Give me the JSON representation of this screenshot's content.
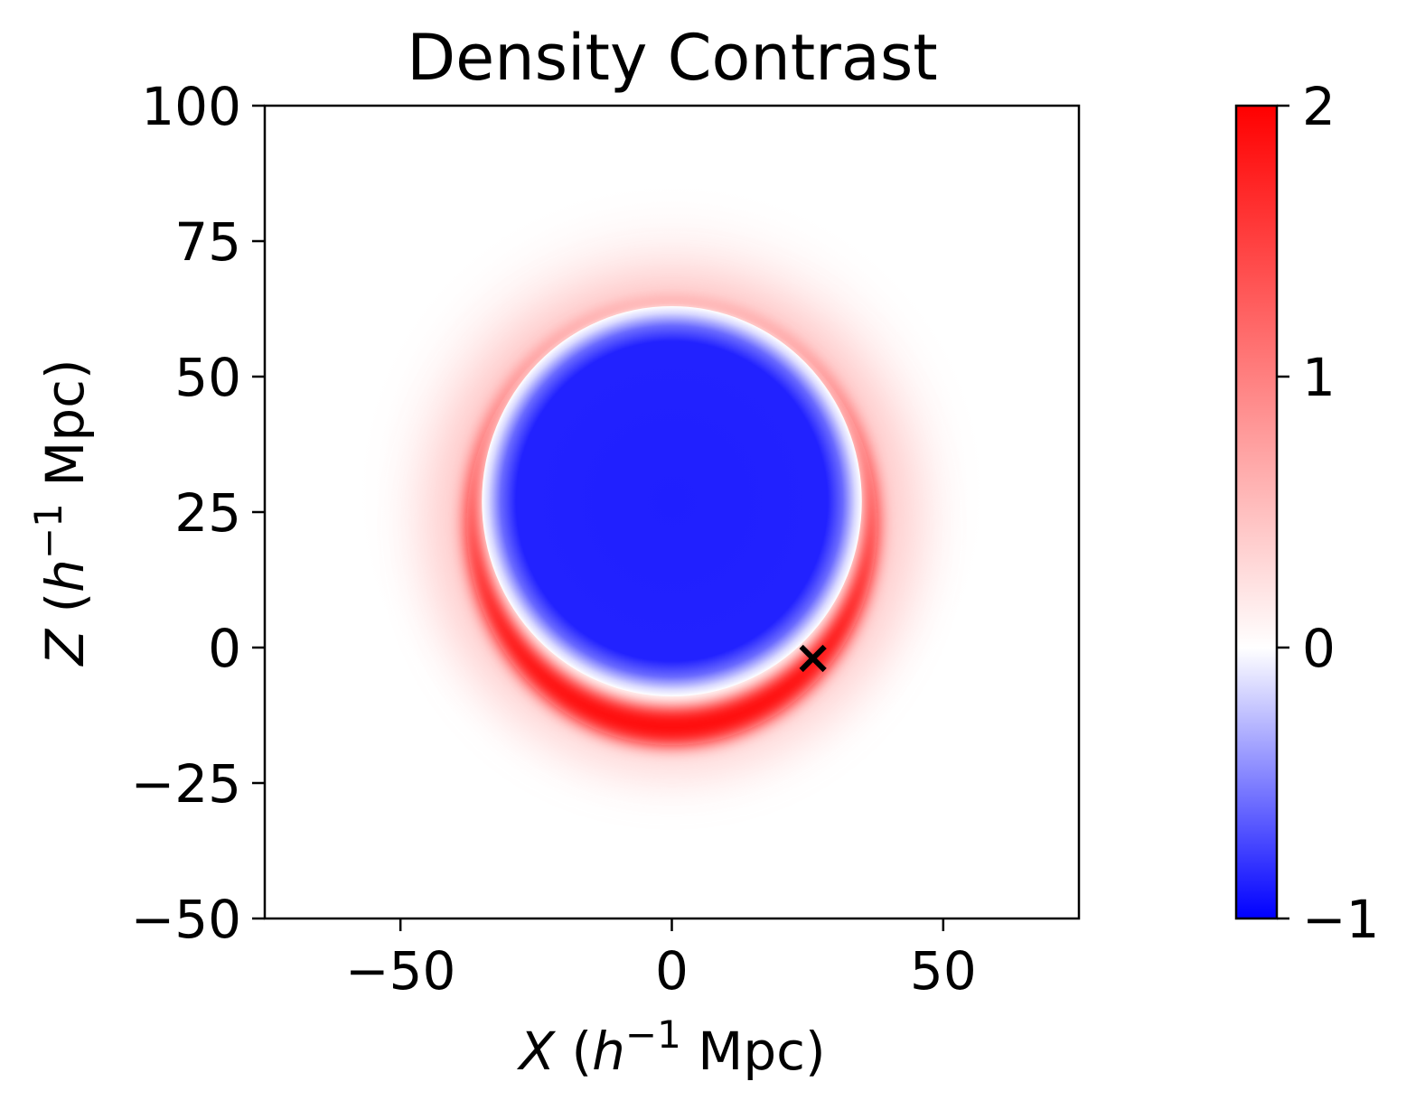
{
  "chart_data": {
    "type": "heatmap",
    "title": "Density Contrast",
    "xlabel": {
      "var": "X",
      "open": " (",
      "h": "h",
      "exp": "−1",
      "unit": " Mpc)"
    },
    "ylabel": {
      "var": "Z",
      "open": " (",
      "h": "h",
      "exp": "−1",
      "unit": " Mpc)"
    },
    "xlim": [
      -75,
      75
    ],
    "ylim": [
      -50,
      100
    ],
    "xticks": [
      -50,
      0,
      50
    ],
    "xtick_labels": [
      "−50",
      "0",
      "50"
    ],
    "yticks": [
      -50,
      -25,
      0,
      25,
      50,
      75,
      100
    ],
    "ytick_labels": [
      "−50",
      "−25",
      "0",
      "25",
      "50",
      "75",
      "100"
    ],
    "colormap": "bwr",
    "colorbar": {
      "range": [
        -1,
        2
      ],
      "ticks": [
        -1,
        0,
        1,
        2
      ],
      "tick_labels": [
        "−1",
        "0",
        "1",
        "2"
      ],
      "colors": {
        "low": "#0000ff",
        "mid": "#ffffff",
        "high": "#ff0000"
      }
    },
    "void": {
      "center_x": 0,
      "center_z": 27,
      "radius_x": 35,
      "radius_z": 36,
      "inner_value": -0.88
    },
    "shell": {
      "peak_value": 2.0,
      "bottom_z": -12,
      "top_z": 68
    },
    "marker": {
      "symbol": "×",
      "x": 26,
      "z": -2,
      "color": "#000000"
    }
  }
}
